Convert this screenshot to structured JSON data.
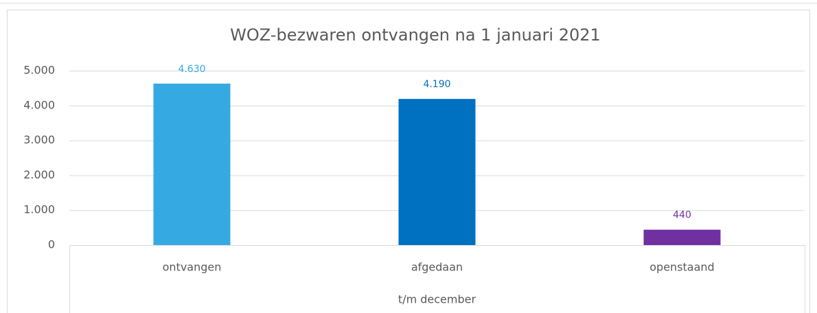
{
  "chart_data": {
    "type": "bar",
    "title": "WOZ-bezwaren ontvangen na 1 januari 2021",
    "categories": [
      "ontvangen",
      "afgedaan",
      "openstaand"
    ],
    "x_group_label": "t/m december",
    "values": [
      4630,
      4190,
      440
    ],
    "value_labels": [
      "4.630",
      "4.190",
      "440"
    ],
    "colors": [
      "#35a9e1",
      "#0070c0",
      "#7030a0"
    ],
    "ylim": [
      0,
      5000
    ],
    "yticks": [
      0,
      {
        "value": 1000,
        "label": "1.000"
      },
      {
        "value": 2000,
        "label": "2.000"
      },
      {
        "value": 3000,
        "label": "3.000"
      },
      {
        "value": 4000,
        "label": "4.000"
      },
      {
        "value": 5000,
        "label": "5.000"
      }
    ],
    "grid": true
  }
}
